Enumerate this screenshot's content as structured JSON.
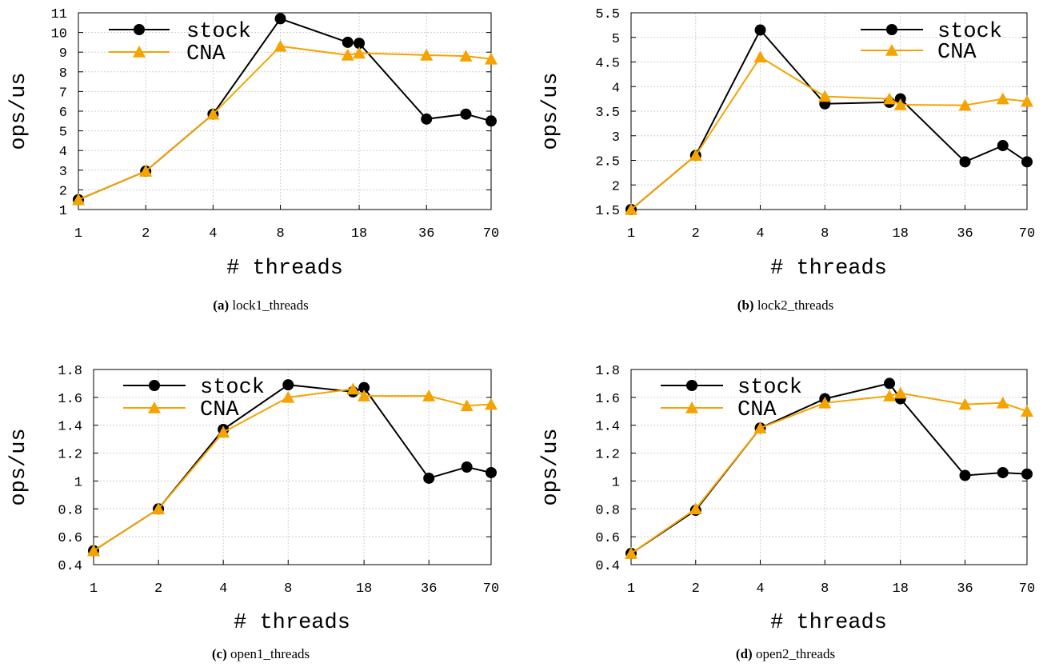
{
  "chart_data": [
    {
      "type": "line",
      "caption_tag": "(a)",
      "caption_text": "lock1_threads",
      "xlabel": "# threads",
      "ylabel": "ops/us",
      "x_tick_labels": [
        "1",
        "2",
        "4",
        "8",
        "18",
        "36",
        "70"
      ],
      "x_tick_values": [
        1,
        2,
        4,
        8,
        18,
        36,
        70
      ],
      "x_scale": "log",
      "x_range": [
        1,
        70
      ],
      "y_ticks": [
        "1",
        "2",
        "3",
        "4",
        "5",
        "6",
        "7",
        "8",
        "9",
        "10",
        "11"
      ],
      "ylim": [
        1,
        11
      ],
      "grid": true,
      "legend_position": "top-left",
      "series": [
        {
          "name": "stock",
          "color": "#000000",
          "marker": "circle",
          "x": [
            1,
            2,
            4,
            8,
            16,
            18,
            36,
            54,
            70
          ],
          "y": [
            1.5,
            2.95,
            5.85,
            10.7,
            9.5,
            9.45,
            5.6,
            5.85,
            5.5
          ]
        },
        {
          "name": "CNA",
          "color": "#f5a300",
          "marker": "triangle",
          "x": [
            1,
            2,
            4,
            8,
            16,
            18,
            36,
            54,
            70
          ],
          "y": [
            1.5,
            2.95,
            5.85,
            9.3,
            8.85,
            8.95,
            8.85,
            8.8,
            8.65
          ]
        }
      ]
    },
    {
      "type": "line",
      "caption_tag": "(b)",
      "caption_text": "lock2_threads",
      "xlabel": "# threads",
      "ylabel": "ops/us",
      "x_tick_labels": [
        "1",
        "2",
        "4",
        "8",
        "18",
        "36",
        "70"
      ],
      "x_tick_values": [
        1,
        2,
        4,
        8,
        18,
        36,
        70
      ],
      "x_scale": "log",
      "x_range": [
        1,
        70
      ],
      "y_ticks": [
        "1.5",
        "2",
        "2.5",
        "3",
        "3.5",
        "4",
        "4.5",
        "5",
        "5.5"
      ],
      "ylim": [
        1.5,
        5.5
      ],
      "grid": true,
      "legend_position": "top-right",
      "series": [
        {
          "name": "stock",
          "color": "#000000",
          "marker": "circle",
          "x": [
            1,
            2,
            4,
            8,
            16,
            18,
            36,
            54,
            70
          ],
          "y": [
            1.5,
            2.6,
            5.15,
            3.65,
            3.68,
            3.75,
            2.47,
            2.8,
            2.47
          ]
        },
        {
          "name": "CNA",
          "color": "#f5a300",
          "marker": "triangle",
          "x": [
            1,
            2,
            4,
            8,
            16,
            18,
            36,
            54,
            70
          ],
          "y": [
            1.5,
            2.6,
            4.6,
            3.8,
            3.75,
            3.63,
            3.62,
            3.75,
            3.7
          ]
        }
      ]
    },
    {
      "type": "line",
      "caption_tag": "(c)",
      "caption_text": "open1_threads",
      "xlabel": "# threads",
      "ylabel": "ops/us",
      "x_tick_labels": [
        "1",
        "2",
        "4",
        "8",
        "18",
        "36",
        "70"
      ],
      "x_tick_values": [
        1,
        2,
        4,
        8,
        18,
        36,
        70
      ],
      "x_scale": "log",
      "x_range": [
        1,
        70
      ],
      "y_ticks": [
        "0.4",
        "0.6",
        "0.8",
        "1",
        "1.2",
        "1.4",
        "1.6",
        "1.8"
      ],
      "ylim": [
        0.4,
        1.8
      ],
      "grid": true,
      "legend_position": "top-left",
      "series": [
        {
          "name": "stock",
          "color": "#000000",
          "marker": "circle",
          "x": [
            1,
            2,
            4,
            8,
            16,
            18,
            36,
            54,
            70
          ],
          "y": [
            0.5,
            0.8,
            1.37,
            1.69,
            1.64,
            1.67,
            1.02,
            1.1,
            1.06
          ]
        },
        {
          "name": "CNA",
          "color": "#f5a300",
          "marker": "triangle",
          "x": [
            1,
            2,
            4,
            8,
            16,
            18,
            36,
            54,
            70
          ],
          "y": [
            0.5,
            0.8,
            1.35,
            1.6,
            1.66,
            1.61,
            1.61,
            1.54,
            1.55
          ]
        }
      ]
    },
    {
      "type": "line",
      "caption_tag": "(d)",
      "caption_text": "open2_threads",
      "xlabel": "# threads",
      "ylabel": "ops/us",
      "x_tick_labels": [
        "1",
        "2",
        "4",
        "8",
        "18",
        "36",
        "70"
      ],
      "x_tick_values": [
        1,
        2,
        4,
        8,
        18,
        36,
        70
      ],
      "x_scale": "log",
      "x_range": [
        1,
        70
      ],
      "y_ticks": [
        "0.4",
        "0.6",
        "0.8",
        "1",
        "1.2",
        "1.4",
        "1.6",
        "1.8"
      ],
      "ylim": [
        0.4,
        1.8
      ],
      "grid": true,
      "legend_position": "top-left",
      "series": [
        {
          "name": "stock",
          "color": "#000000",
          "marker": "circle",
          "x": [
            1,
            2,
            4,
            8,
            16,
            18,
            36,
            54,
            70
          ],
          "y": [
            0.48,
            0.79,
            1.38,
            1.59,
            1.7,
            1.59,
            1.04,
            1.06,
            1.05
          ]
        },
        {
          "name": "CNA",
          "color": "#f5a300",
          "marker": "triangle",
          "x": [
            1,
            2,
            4,
            8,
            16,
            18,
            36,
            54,
            70
          ],
          "y": [
            0.48,
            0.8,
            1.38,
            1.56,
            1.61,
            1.63,
            1.55,
            1.56,
            1.5
          ]
        }
      ]
    }
  ]
}
